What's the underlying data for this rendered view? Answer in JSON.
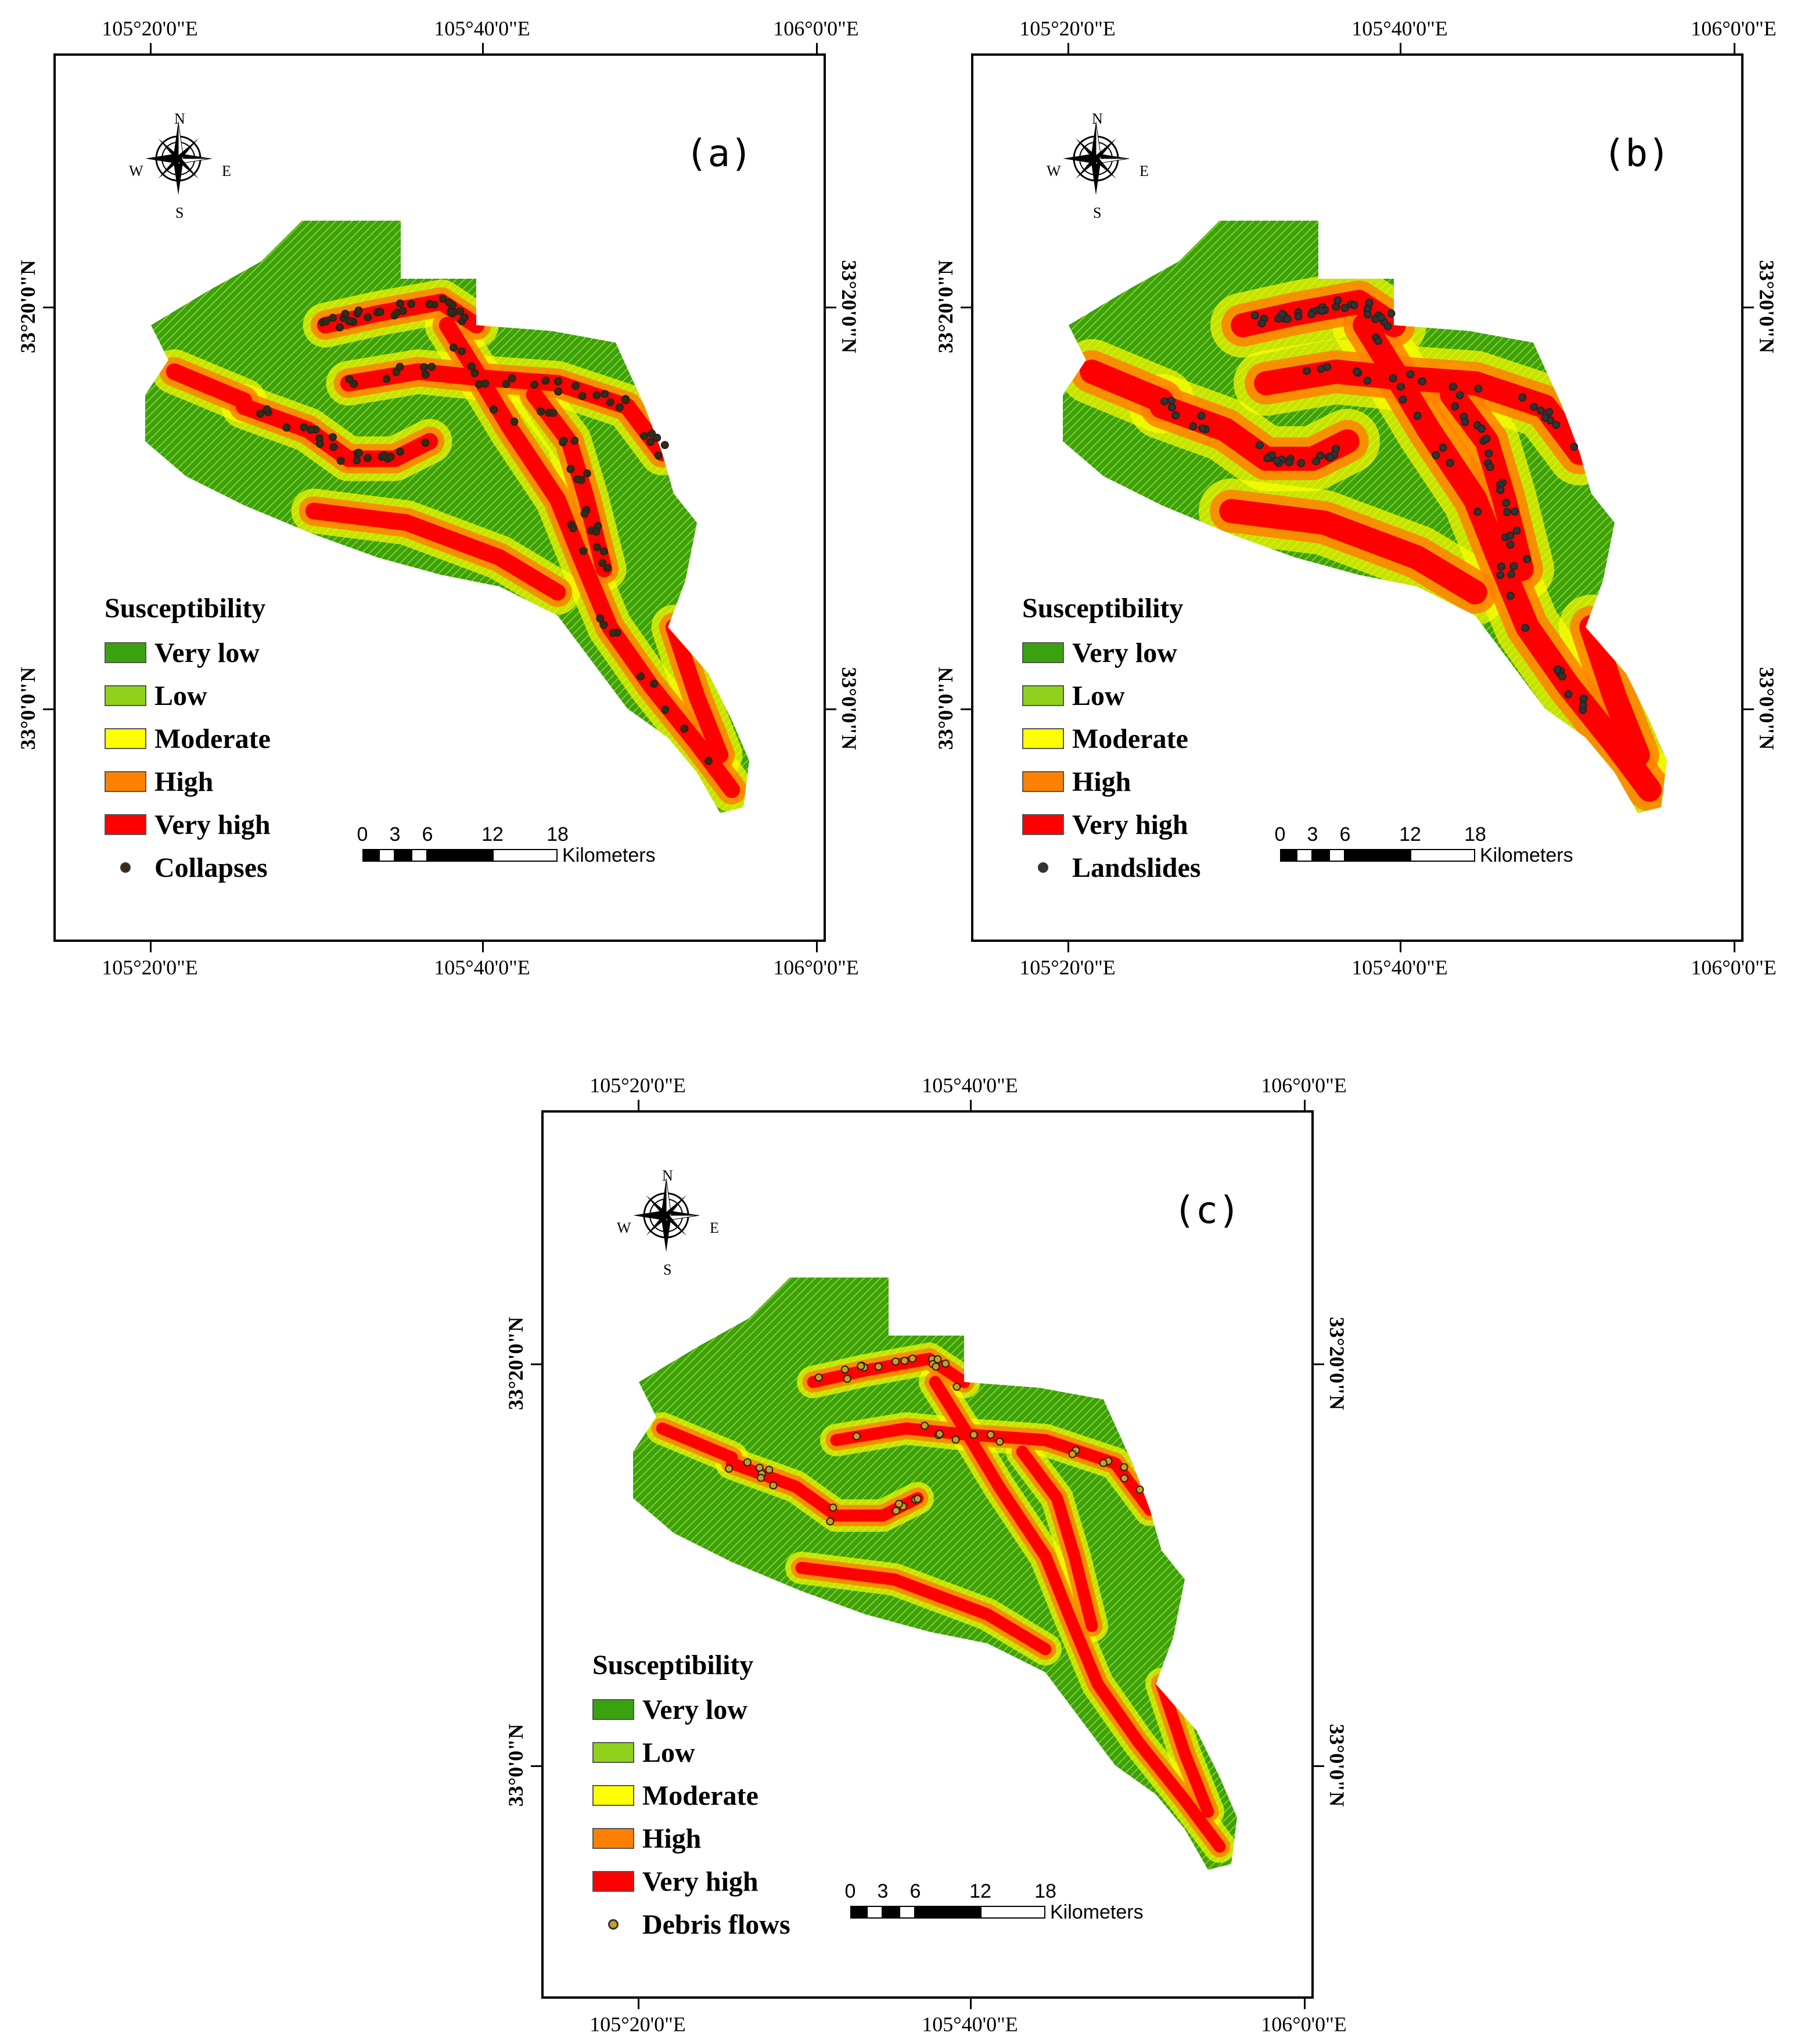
{
  "legend": {
    "title": "Susceptibility",
    "classes": [
      {
        "label": "Very low",
        "color": "#3aa10f"
      },
      {
        "label": "Low",
        "color": "#8fd11b"
      },
      {
        "label": "Moderate",
        "color": "#ffff00"
      },
      {
        "label": "High",
        "color": "#ff8000"
      },
      {
        "label": "Very high",
        "color": "#ff0000"
      }
    ]
  },
  "scalebar": {
    "ticks": [
      "0",
      "3",
      "6",
      "12",
      "18"
    ],
    "units": "Kilometers"
  },
  "axes": {
    "x_top": [
      "105°20'0\"E",
      "105°40'0\"E",
      "106°0'0\"E"
    ],
    "x_bottom": [
      "105°20'0\"E",
      "105°40'0\"E",
      "106°0'0\"E"
    ],
    "y_left": [
      "33°20'0\"N",
      "33°0'0\"N"
    ],
    "y_right": [
      "33°20'0\"N",
      "33°0'0\"N"
    ]
  },
  "compass": {
    "n": "N",
    "s": "S",
    "e": "E",
    "w": "W"
  },
  "panels": [
    {
      "id": "a",
      "label": "(a)",
      "point_label": "Collapses",
      "point_color": "#3a2a10"
    },
    {
      "id": "b",
      "label": "(b)",
      "point_label": "Landslides",
      "point_color": "#333333"
    },
    {
      "id": "c",
      "label": "(c)",
      "point_label": "Debris flows",
      "point_color": "#c8a020"
    }
  ]
}
